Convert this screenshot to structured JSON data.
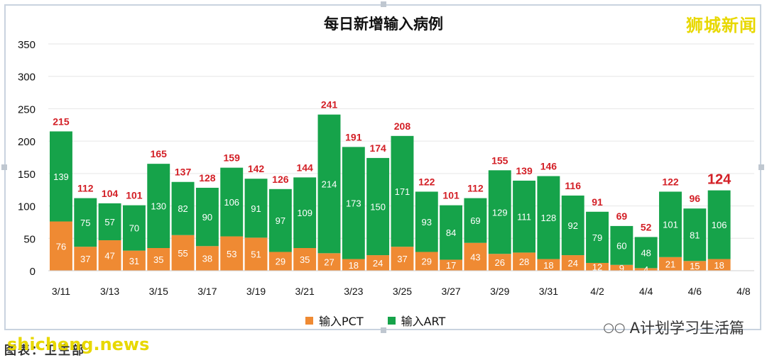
{
  "brand": "狮城新闻",
  "footer": {
    "brand": "A计划学习生活篇",
    "icon": "wechat-icon",
    "watermark": "shicheng.news",
    "caption": "图表：卫生部"
  },
  "colors": {
    "pct": "#ef8a33",
    "art": "#16a34a",
    "total_label": "#d31f26",
    "grid": "#e6e6e6"
  },
  "chart_data": {
    "type": "bar",
    "stacked": true,
    "title": "每日新增输入病例",
    "xlabel": "",
    "ylabel": "",
    "ylim": [
      0,
      350
    ],
    "yticks": [
      0,
      50,
      100,
      150,
      200,
      250,
      300,
      350
    ],
    "grid": true,
    "legend_position": "bottom",
    "categories": [
      "3/11",
      "3/12",
      "3/13",
      "3/14",
      "3/15",
      "3/16",
      "3/17",
      "3/18",
      "3/19",
      "3/20",
      "3/21",
      "3/22",
      "3/23",
      "3/24",
      "3/25",
      "3/26",
      "3/27",
      "3/28",
      "3/29",
      "3/30",
      "3/31",
      "4/1",
      "4/2",
      "4/3",
      "4/4",
      "4/5",
      "4/6",
      "4/7"
    ],
    "xtick_labels": [
      "3/11",
      "3/13",
      "3/15",
      "3/17",
      "3/19",
      "3/21",
      "3/23",
      "3/25",
      "3/27",
      "3/29",
      "3/31",
      "4/2",
      "4/4",
      "4/6",
      "4/8"
    ],
    "series": [
      {
        "name": "输入PCT",
        "values": [
          76,
          37,
          47,
          31,
          35,
          55,
          38,
          53,
          51,
          29,
          35,
          27,
          18,
          24,
          37,
          29,
          17,
          43,
          26,
          28,
          18,
          24,
          12,
          9,
          4,
          21,
          15,
          18
        ]
      },
      {
        "name": "输入ART",
        "values": [
          139,
          75,
          57,
          70,
          130,
          82,
          90,
          106,
          91,
          97,
          109,
          214,
          173,
          150,
          171,
          93,
          84,
          69,
          129,
          111,
          128,
          92,
          79,
          60,
          48,
          101,
          81,
          106
        ]
      }
    ],
    "totals": [
      215,
      112,
      104,
      101,
      165,
      137,
      128,
      159,
      142,
      126,
      144,
      241,
      191,
      174,
      208,
      122,
      101,
      112,
      155,
      139,
      146,
      116,
      91,
      69,
      52,
      122,
      96,
      124
    ]
  }
}
